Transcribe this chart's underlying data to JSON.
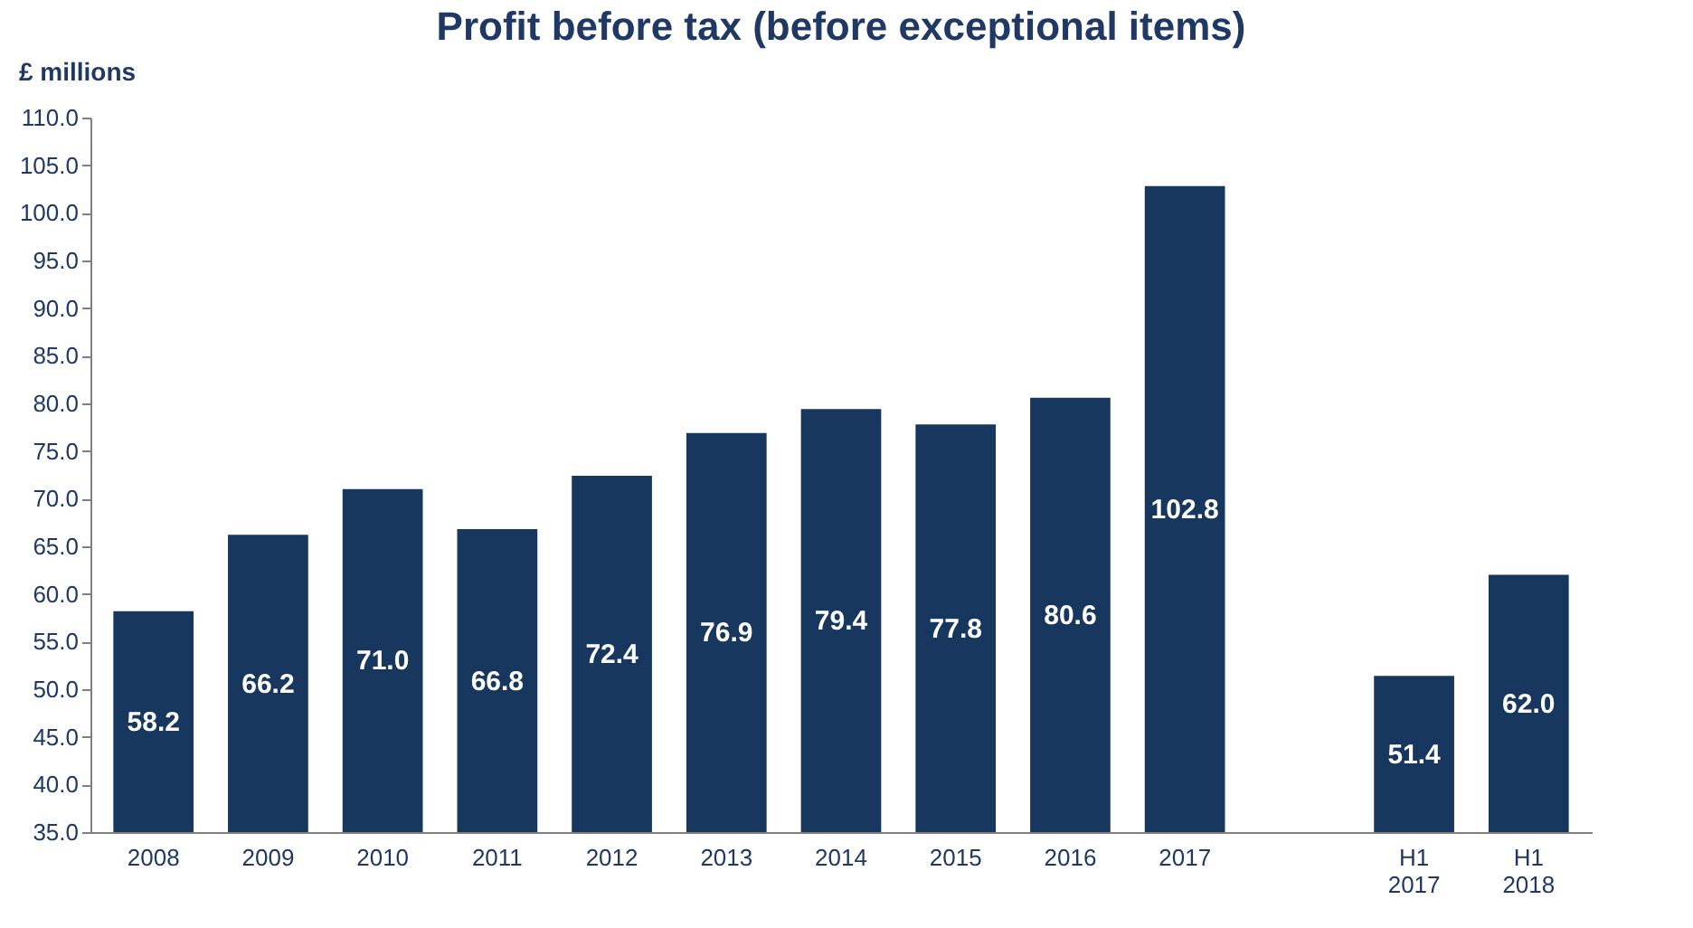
{
  "chart_data": {
    "type": "bar",
    "title": "Profit before tax (before exceptional items)",
    "ylabel": "£ millions",
    "categories": [
      "2008",
      "2009",
      "2010",
      "2011",
      "2012",
      "2013",
      "2014",
      "2015",
      "2016",
      "2017",
      null,
      "H1 2017",
      "H1 2018"
    ],
    "values": [
      58.2,
      66.2,
      71.0,
      66.8,
      72.4,
      76.9,
      79.4,
      77.8,
      80.6,
      102.8,
      null,
      51.4,
      62.0
    ],
    "color": "#17375e",
    "ylim": [
      35,
      110
    ],
    "yticks": [
      {
        "value": 35,
        "label": "35.0"
      },
      {
        "value": 40,
        "label": "40.0"
      },
      {
        "value": 45,
        "label": "45.0"
      },
      {
        "value": 50,
        "label": "50.0"
      },
      {
        "value": 55,
        "label": "55.0"
      },
      {
        "value": 60,
        "label": "60.0"
      },
      {
        "value": 65,
        "label": "65.0"
      },
      {
        "value": 70,
        "label": "70.0"
      },
      {
        "value": 75,
        "label": "75.0"
      },
      {
        "value": 80,
        "label": "80.0"
      },
      {
        "value": 85,
        "label": "85.0"
      },
      {
        "value": 90,
        "label": "90.0"
      },
      {
        "value": 95,
        "label": "95.0"
      },
      {
        "value": 100,
        "label": "100.0"
      },
      {
        "value": 105,
        "label": "105.0"
      },
      {
        "value": 110,
        "label": "110.0"
      }
    ],
    "value_labels": [
      "58.2",
      "66.2",
      "71.0",
      "66.8",
      "72.4",
      "76.9",
      "79.4",
      "77.8",
      "80.6",
      "102.8",
      null,
      "51.4",
      "62.0"
    ],
    "grid": false
  }
}
